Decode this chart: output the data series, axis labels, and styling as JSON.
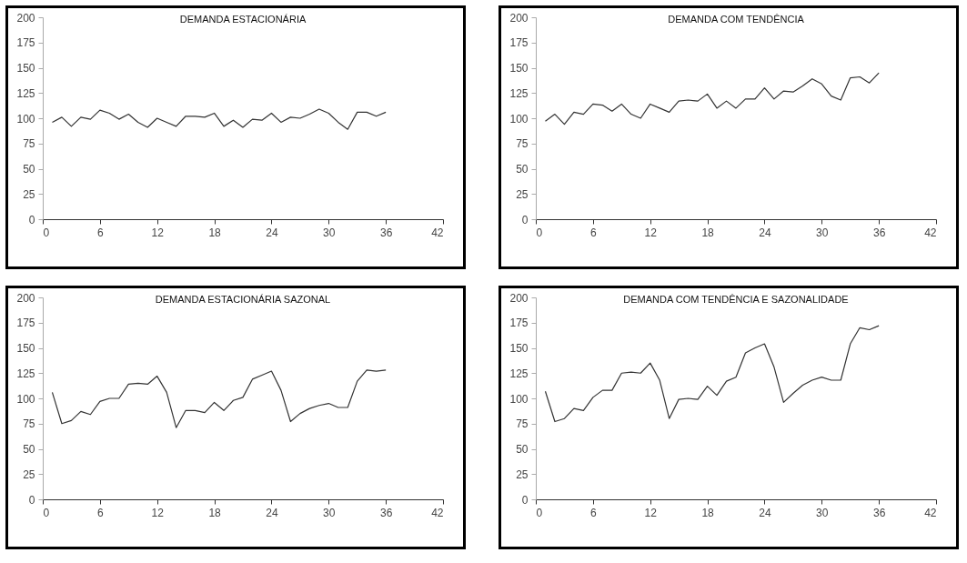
{
  "chart_data": [
    {
      "type": "line",
      "title": "DEMANDA ESTACIONÁRIA",
      "x": [
        1,
        2,
        3,
        4,
        5,
        6,
        7,
        8,
        9,
        10,
        11,
        12,
        13,
        14,
        15,
        16,
        17,
        18,
        19,
        20,
        21,
        22,
        23,
        24,
        25,
        26,
        27,
        28,
        29,
        30,
        31,
        32,
        33,
        34,
        35,
        36
      ],
      "series": [
        {
          "color": "#333333",
          "values": [
            96,
            101,
            92,
            101,
            99,
            108,
            105,
            99,
            104,
            96,
            91,
            100,
            96,
            92,
            102,
            102,
            101,
            105,
            92,
            98,
            91,
            99,
            98,
            105,
            96,
            101,
            100,
            104,
            109,
            105,
            96,
            89,
            106,
            106,
            102,
            106
          ]
        }
      ],
      "xlim": [
        0,
        42
      ],
      "xticks": [
        0,
        6,
        12,
        18,
        24,
        30,
        36,
        42
      ],
      "ylim": [
        0,
        200
      ],
      "yticks": [
        0,
        25,
        50,
        75,
        100,
        125,
        150,
        175,
        200
      ],
      "grid": false,
      "marker": "none",
      "line_style": "solid"
    },
    {
      "type": "line",
      "title": "DEMANDA COM TENDÊNCIA",
      "x": [
        1,
        2,
        3,
        4,
        5,
        6,
        7,
        8,
        9,
        10,
        11,
        12,
        13,
        14,
        15,
        16,
        17,
        18,
        19,
        20,
        21,
        22,
        23,
        24,
        25,
        26,
        27,
        28,
        29,
        30,
        31,
        32,
        33,
        34,
        35,
        36
      ],
      "series": [
        {
          "color": "#333333",
          "values": [
            97,
            104,
            94,
            106,
            104,
            114,
            113,
            107,
            114,
            104,
            100,
            114,
            110,
            106,
            117,
            118,
            117,
            124,
            110,
            117,
            110,
            119,
            119,
            130,
            119,
            127,
            126,
            132,
            139,
            134,
            122,
            118,
            140,
            141,
            135,
            145
          ]
        }
      ],
      "xlim": [
        0,
        42
      ],
      "xticks": [
        0,
        6,
        12,
        18,
        24,
        30,
        36,
        42
      ],
      "ylim": [
        0,
        200
      ],
      "yticks": [
        0,
        25,
        50,
        75,
        100,
        125,
        150,
        175,
        200
      ],
      "grid": false,
      "marker": "none",
      "line_style": "solid"
    },
    {
      "type": "line",
      "title": "DEMANDA ESTACIONÁRIA SAZONAL",
      "x": [
        1,
        2,
        3,
        4,
        5,
        6,
        7,
        8,
        9,
        10,
        11,
        12,
        13,
        14,
        15,
        16,
        17,
        18,
        19,
        20,
        21,
        22,
        23,
        24,
        25,
        26,
        27,
        28,
        29,
        30,
        31,
        32,
        33,
        34,
        35,
        36
      ],
      "series": [
        {
          "color": "#333333",
          "values": [
            106,
            75,
            78,
            87,
            84,
            97,
            100,
            100,
            114,
            115,
            114,
            122,
            106,
            71,
            88,
            88,
            86,
            96,
            88,
            98,
            101,
            119,
            123,
            127,
            108,
            77,
            85,
            90,
            93,
            95,
            91,
            91,
            117,
            128,
            127,
            128
          ]
        }
      ],
      "xlim": [
        0,
        42
      ],
      "xticks": [
        0,
        6,
        12,
        18,
        24,
        30,
        36,
        42
      ],
      "ylim": [
        0,
        200
      ],
      "yticks": [
        0,
        25,
        50,
        75,
        100,
        125,
        150,
        175,
        200
      ],
      "grid": false,
      "marker": "none",
      "line_style": "solid"
    },
    {
      "type": "line",
      "title": "DEMANDA COM TENDÊNCIA E SAZONALIDADE",
      "x": [
        1,
        2,
        3,
        4,
        5,
        6,
        7,
        8,
        9,
        10,
        11,
        12,
        13,
        14,
        15,
        16,
        17,
        18,
        19,
        20,
        21,
        22,
        23,
        24,
        25,
        26,
        27,
        28,
        29,
        30,
        31,
        32,
        33,
        34,
        35,
        36
      ],
      "series": [
        {
          "color": "#333333",
          "values": [
            107,
            77,
            80,
            90,
            88,
            101,
            108,
            108,
            125,
            126,
            125,
            135,
            118,
            80,
            99,
            100,
            99,
            112,
            103,
            117,
            121,
            145,
            150,
            154,
            131,
            96,
            105,
            113,
            118,
            121,
            118,
            118,
            154,
            170,
            168,
            172
          ]
        }
      ],
      "xlim": [
        0,
        42
      ],
      "xticks": [
        0,
        6,
        12,
        18,
        24,
        30,
        36,
        42
      ],
      "ylim": [
        0,
        200
      ],
      "yticks": [
        0,
        25,
        50,
        75,
        100,
        125,
        150,
        175,
        200
      ],
      "grid": false,
      "marker": "none",
      "line_style": "solid"
    }
  ]
}
